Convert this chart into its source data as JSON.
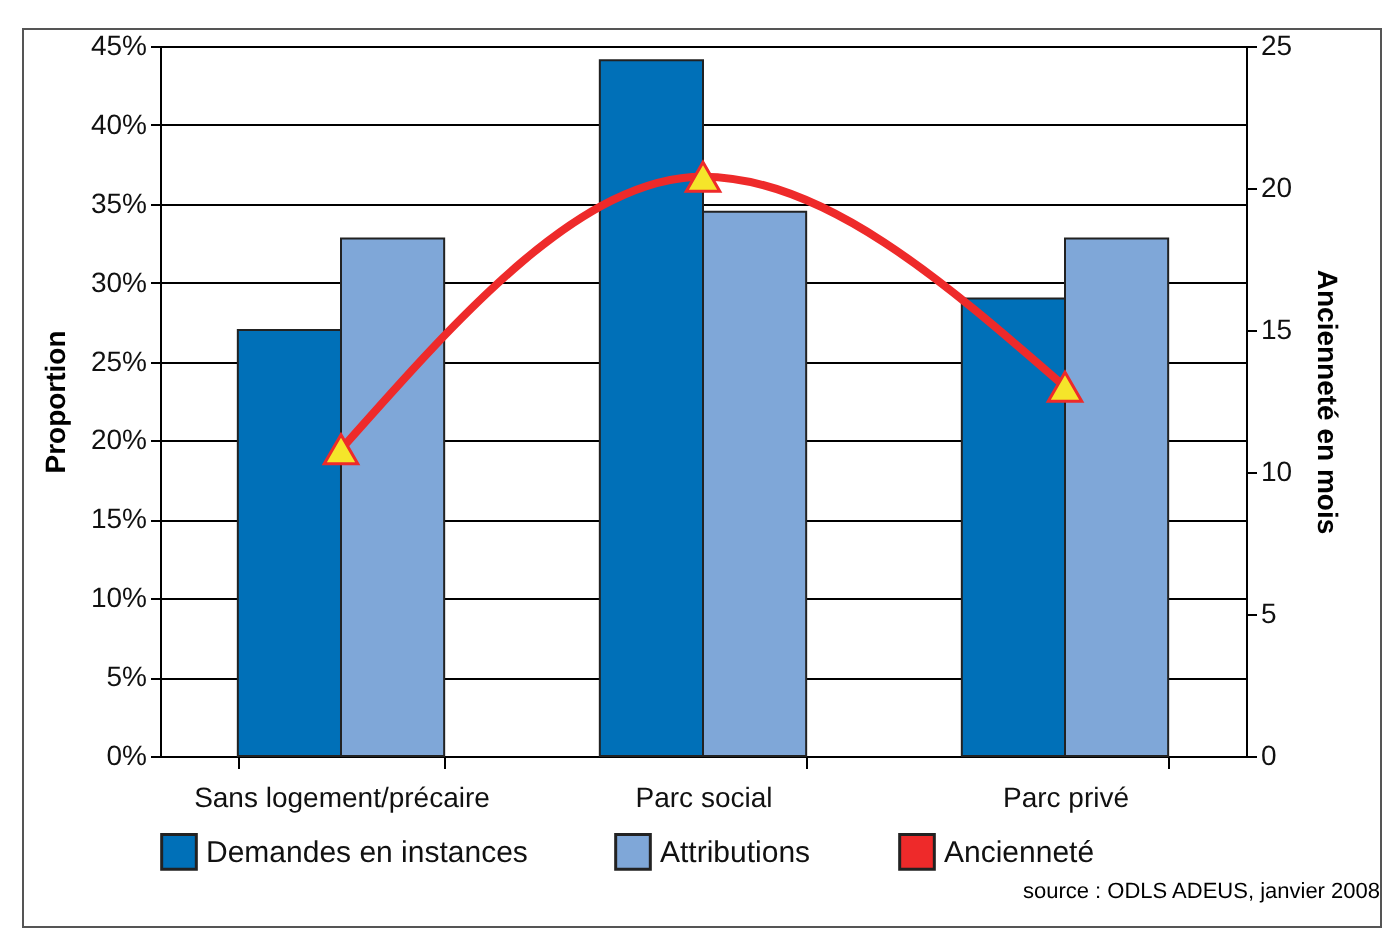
{
  "chart_data": {
    "type": "bar",
    "categories": [
      "Sans logement/précaire",
      "Parc social",
      "Parc privé"
    ],
    "series": [
      {
        "name": "Demandes en instances",
        "color": "#0070b8",
        "values": [
          27.0,
          44.1,
          29.0
        ]
      },
      {
        "name": "Attributions",
        "color": "#7fa7d8",
        "values": [
          32.8,
          34.5,
          32.8
        ]
      },
      {
        "name": "Ancienneté",
        "type": "line",
        "axis": "y2",
        "color": "#ee2a2a",
        "marker": "triangle",
        "values": [
          10.8,
          20.4,
          13.0
        ]
      }
    ],
    "ylabel": "Proportion",
    "y2label": "Ancienneté en mois",
    "ylim": [
      0,
      45
    ],
    "yticks": [
      {
        "value": 0,
        "label": "0%"
      },
      {
        "value": 5,
        "label": "5%"
      },
      {
        "value": 10,
        "label": "10%"
      },
      {
        "value": 15,
        "label": "15%"
      },
      {
        "value": 20,
        "label": "20%"
      },
      {
        "value": 25,
        "label": "25%"
      },
      {
        "value": 30,
        "label": "30%"
      },
      {
        "value": 35,
        "label": "35%"
      },
      {
        "value": 40,
        "label": "40%"
      },
      {
        "value": 45,
        "label": "45%"
      }
    ],
    "y2lim": [
      0,
      25
    ],
    "y2ticks": [
      0,
      5,
      10,
      15,
      20,
      25
    ],
    "grid": "y",
    "legend": "bottom",
    "annotations": [
      "source : ODLS ADEUS, janvier 2008"
    ]
  }
}
